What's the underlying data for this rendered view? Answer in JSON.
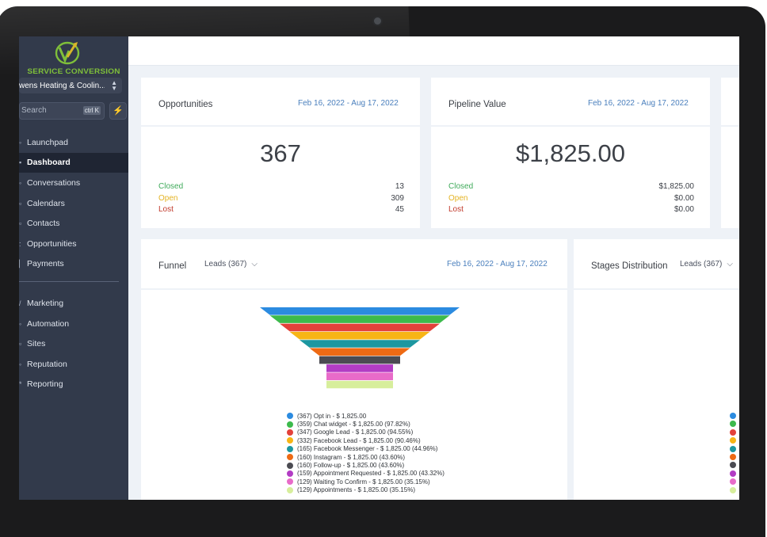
{
  "brand": {
    "name": "SERVICE CONVERSION",
    "logo_colors": [
      "#7fbf3a",
      "#d8b62a"
    ]
  },
  "account": {
    "name": "wens Heating & Coolin..."
  },
  "search": {
    "placeholder": "Search",
    "shortcut": "ctrl K"
  },
  "quick_action_icon": "lightning-icon",
  "sidebar": {
    "primary": [
      {
        "label": "Launchpad",
        "active": false
      },
      {
        "label": "Dashboard",
        "active": true
      },
      {
        "label": "Conversations",
        "active": false
      },
      {
        "label": "Calendars",
        "active": false
      },
      {
        "label": "Contacts",
        "active": false
      },
      {
        "label": "Opportunities",
        "active": false
      },
      {
        "label": "Payments",
        "active": false
      }
    ],
    "secondary": [
      {
        "label": "Marketing"
      },
      {
        "label": "Automation"
      },
      {
        "label": "Sites"
      },
      {
        "label": "Reputation"
      },
      {
        "label": "Reporting"
      }
    ]
  },
  "cards": {
    "opportunities": {
      "title": "Opportunities",
      "range": "Feb 16, 2022 - Aug 17, 2022",
      "value": "367",
      "rows": [
        {
          "label": "Closed",
          "value": "13"
        },
        {
          "label": "Open",
          "value": "309"
        },
        {
          "label": "Lost",
          "value": "45"
        }
      ]
    },
    "pipeline": {
      "title": "Pipeline Value",
      "range": "Feb 16, 2022 - Aug 17, 2022",
      "value": "$1,825.00",
      "rows": [
        {
          "label": "Closed",
          "value": "$1,825.00"
        },
        {
          "label": "Open",
          "value": "$0.00"
        },
        {
          "label": "Lost",
          "value": "$0.00"
        }
      ]
    },
    "funnel": {
      "title": "Funnel",
      "filter": "Leads (367)",
      "range": "Feb 16, 2022 - Aug 17, 2022"
    },
    "stages": {
      "title": "Stages Distribution",
      "filter": "Leads (367)"
    }
  },
  "chart_data": {
    "type": "funnel",
    "stages": [
      {
        "label": "(367) Opt in - $ 1,825.00",
        "count": 367,
        "color": "#2b8be0"
      },
      {
        "label": "(359) Chat widget - $ 1,825.00 (97.82%)",
        "count": 359,
        "color": "#3cba4c"
      },
      {
        "label": "(347) Google Lead - $ 1,825.00 (94.55%)",
        "count": 347,
        "color": "#e3413a"
      },
      {
        "label": "(332) Facebook Lead - $ 1,825.00 (90.46%)",
        "count": 332,
        "color": "#f7b515"
      },
      {
        "label": "(165) Facebook Messenger - $ 1,825.00 (44.96%)",
        "count": 165,
        "color": "#1c97a0"
      },
      {
        "label": "(160) Instagram - $ 1,825.00 (43.60%)",
        "count": 160,
        "color": "#ee6a14"
      },
      {
        "label": "(160) Follow-up - $ 1,825.00 (43.60%)",
        "count": 160,
        "color": "#4b4b52"
      },
      {
        "label": "(159) Appointment Requested - $ 1,825.00 (43.32%)",
        "count": 159,
        "color": "#b23cc4"
      },
      {
        "label": "(129) Waiting To Confirm - $ 1,825.00 (35.15%)",
        "count": 129,
        "color": "#e86bc9"
      },
      {
        "label": "(129) Appointments - $ 1,825.00 (35.15%)",
        "count": 129,
        "color": "#d7ee9c"
      }
    ]
  }
}
